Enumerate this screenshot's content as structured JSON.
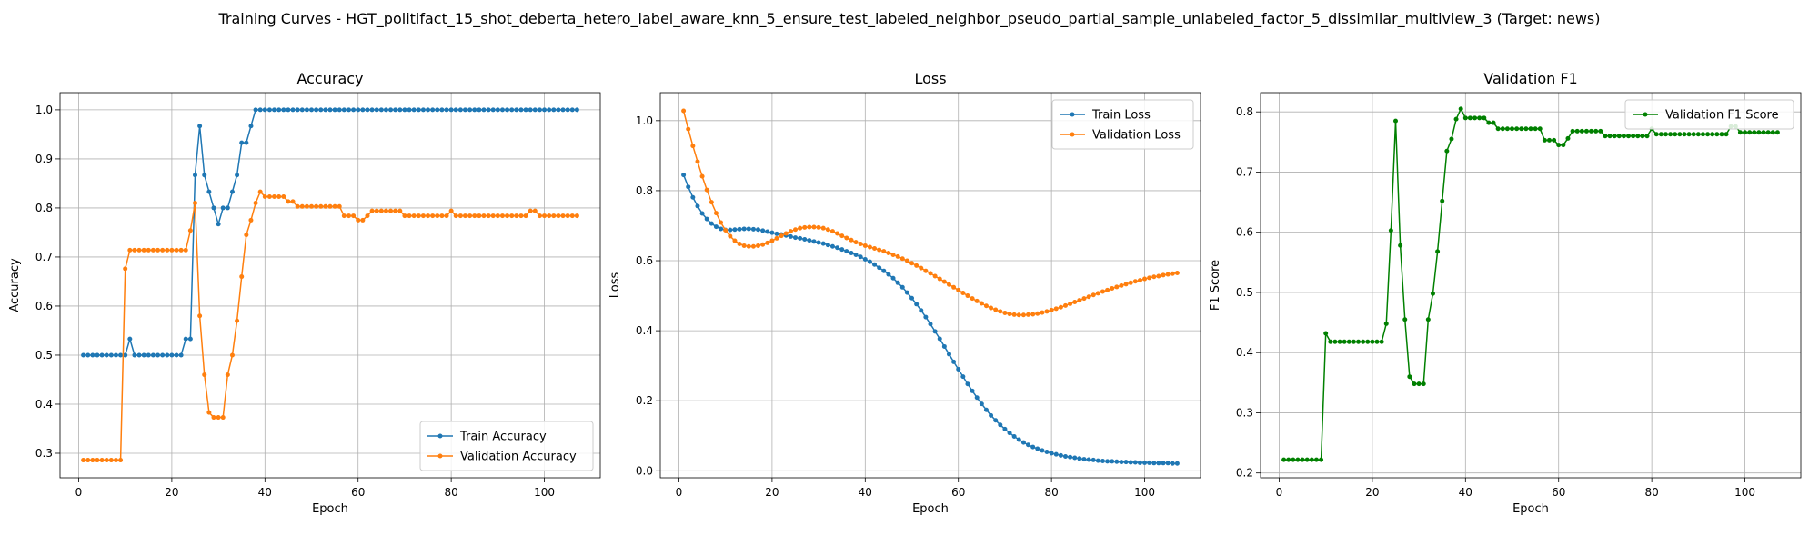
{
  "figure": {
    "suptitle": "Training Curves - HGT_politifact_15_shot_deberta_hetero_label_aware_knn_5_ensure_test_labeled_neighbor_pseudo_partial_sample_unlabeled_factor_5_dissimilar_multiview_3 (Target: news)"
  },
  "chart_data": [
    {
      "type": "line",
      "title": "Accuracy",
      "xlabel": "Epoch",
      "ylabel": "Accuracy",
      "xlim": [
        -4,
        112
      ],
      "ylim": [
        0.25,
        1.035
      ],
      "xticks": [
        0,
        20,
        40,
        60,
        80,
        100
      ],
      "yticks": [
        0.3,
        0.4,
        0.5,
        0.6,
        0.7,
        0.8,
        0.9,
        1.0
      ],
      "ytick_labels": [
        "0.3",
        "0.4",
        "0.5",
        "0.6",
        "0.7",
        "0.8",
        "0.9",
        "1.0"
      ],
      "grid": true,
      "legend_position": "lower-right",
      "series": [
        {
          "name": "Train Accuracy",
          "color": "#1f77b4",
          "values": [
            0.5,
            0.5,
            0.5,
            0.5,
            0.5,
            0.5,
            0.5,
            0.5,
            0.5,
            0.5,
            0.533,
            0.5,
            0.5,
            0.5,
            0.5,
            0.5,
            0.5,
            0.5,
            0.5,
            0.5,
            0.5,
            0.5,
            0.533,
            0.533,
            0.867,
            0.967,
            0.867,
            0.833,
            0.8,
            0.767,
            0.8,
            0.8,
            0.833,
            0.867,
            0.933,
            0.933,
            0.967,
            1.0,
            1.0,
            1.0,
            1.0,
            1.0,
            1.0,
            1.0,
            1.0,
            1.0,
            1.0,
            1.0,
            1.0,
            1.0,
            1.0,
            1.0,
            1.0,
            1.0,
            1.0,
            1.0,
            1.0,
            1.0,
            1.0,
            1.0,
            1.0,
            1.0,
            1.0,
            1.0,
            1.0,
            1.0,
            1.0,
            1.0,
            1.0,
            1.0,
            1.0,
            1.0,
            1.0,
            1.0,
            1.0,
            1.0,
            1.0,
            1.0,
            1.0,
            1.0,
            1.0,
            1.0,
            1.0,
            1.0,
            1.0,
            1.0,
            1.0,
            1.0,
            1.0,
            1.0,
            1.0,
            1.0,
            1.0,
            1.0,
            1.0,
            1.0,
            1.0,
            1.0,
            1.0,
            1.0,
            1.0,
            1.0,
            1.0,
            1.0,
            1.0,
            1.0,
            1.0
          ]
        },
        {
          "name": "Validation Accuracy",
          "color": "#ff7f0e",
          "values": [
            0.286,
            0.286,
            0.286,
            0.286,
            0.286,
            0.286,
            0.286,
            0.286,
            0.286,
            0.676,
            0.714,
            0.714,
            0.714,
            0.714,
            0.714,
            0.714,
            0.714,
            0.714,
            0.714,
            0.714,
            0.714,
            0.714,
            0.714,
            0.754,
            0.81,
            0.58,
            0.46,
            0.383,
            0.373,
            0.373,
            0.373,
            0.46,
            0.5,
            0.57,
            0.66,
            0.745,
            0.775,
            0.81,
            0.833,
            0.823,
            0.823,
            0.823,
            0.823,
            0.823,
            0.813,
            0.813,
            0.803,
            0.803,
            0.803,
            0.803,
            0.803,
            0.803,
            0.803,
            0.803,
            0.803,
            0.803,
            0.784,
            0.784,
            0.784,
            0.775,
            0.775,
            0.784,
            0.794,
            0.794,
            0.794,
            0.794,
            0.794,
            0.794,
            0.794,
            0.784,
            0.784,
            0.784,
            0.784,
            0.784,
            0.784,
            0.784,
            0.784,
            0.784,
            0.784,
            0.794,
            0.784,
            0.784,
            0.784,
            0.784,
            0.784,
            0.784,
            0.784,
            0.784,
            0.784,
            0.784,
            0.784,
            0.784,
            0.784,
            0.784,
            0.784,
            0.784,
            0.794,
            0.794,
            0.784,
            0.784,
            0.784,
            0.784,
            0.784,
            0.784,
            0.784,
            0.784,
            0.784
          ]
        }
      ]
    },
    {
      "type": "line",
      "title": "Loss",
      "xlabel": "Epoch",
      "ylabel": "Loss",
      "xlim": [
        -4,
        112
      ],
      "ylim": [
        -0.02,
        1.08
      ],
      "xticks": [
        0,
        20,
        40,
        60,
        80,
        100
      ],
      "yticks": [
        0.0,
        0.2,
        0.4,
        0.6,
        0.8,
        1.0
      ],
      "ytick_labels": [
        "0.0",
        "0.2",
        "0.4",
        "0.6",
        "0.8",
        "1.0"
      ],
      "grid": true,
      "legend_position": "upper-right",
      "series": [
        {
          "name": "Train Loss",
          "color": "#1f77b4",
          "values": [
            0.845,
            0.811,
            0.781,
            0.756,
            0.735,
            0.719,
            0.706,
            0.697,
            0.691,
            0.688,
            0.688,
            0.689,
            0.69,
            0.691,
            0.691,
            0.69,
            0.689,
            0.686,
            0.683,
            0.68,
            0.677,
            0.675,
            0.672,
            0.669,
            0.666,
            0.664,
            0.661,
            0.658,
            0.655,
            0.652,
            0.649,
            0.645,
            0.641,
            0.637,
            0.632,
            0.627,
            0.622,
            0.617,
            0.611,
            0.604,
            0.597,
            0.589,
            0.58,
            0.571,
            0.561,
            0.55,
            0.537,
            0.524,
            0.509,
            0.493,
            0.476,
            0.458,
            0.439,
            0.419,
            0.398,
            0.377,
            0.355,
            0.333,
            0.311,
            0.29,
            0.269,
            0.248,
            0.228,
            0.209,
            0.191,
            0.174,
            0.158,
            0.144,
            0.131,
            0.119,
            0.108,
            0.098,
            0.089,
            0.081,
            0.074,
            0.068,
            0.063,
            0.058,
            0.054,
            0.05,
            0.047,
            0.044,
            0.041,
            0.039,
            0.037,
            0.035,
            0.033,
            0.032,
            0.031,
            0.029,
            0.028,
            0.027,
            0.027,
            0.026,
            0.025,
            0.025,
            0.024,
            0.024,
            0.023,
            0.023,
            0.023,
            0.022,
            0.022,
            0.022,
            0.022,
            0.021,
            0.021
          ]
        },
        {
          "name": "Validation Loss",
          "color": "#ff7f0e",
          "values": [
            1.028,
            0.976,
            0.928,
            0.883,
            0.841,
            0.802,
            0.767,
            0.736,
            0.709,
            0.687,
            0.67,
            0.657,
            0.648,
            0.643,
            0.641,
            0.641,
            0.643,
            0.646,
            0.651,
            0.657,
            0.664,
            0.671,
            0.678,
            0.684,
            0.689,
            0.693,
            0.695,
            0.696,
            0.696,
            0.695,
            0.693,
            0.689,
            0.684,
            0.678,
            0.671,
            0.665,
            0.659,
            0.653,
            0.648,
            0.643,
            0.639,
            0.635,
            0.631,
            0.627,
            0.622,
            0.617,
            0.612,
            0.606,
            0.6,
            0.593,
            0.586,
            0.579,
            0.571,
            0.564,
            0.556,
            0.548,
            0.54,
            0.532,
            0.524,
            0.516,
            0.508,
            0.5,
            0.492,
            0.485,
            0.478,
            0.471,
            0.465,
            0.46,
            0.455,
            0.451,
            0.448,
            0.446,
            0.445,
            0.445,
            0.446,
            0.447,
            0.449,
            0.452,
            0.455,
            0.459,
            0.463,
            0.467,
            0.472,
            0.477,
            0.482,
            0.487,
            0.492,
            0.497,
            0.502,
            0.507,
            0.512,
            0.516,
            0.521,
            0.525,
            0.529,
            0.533,
            0.537,
            0.541,
            0.544,
            0.548,
            0.551,
            0.554,
            0.556,
            0.559,
            0.561,
            0.563,
            0.565
          ]
        }
      ]
    },
    {
      "type": "line",
      "title": "Validation F1",
      "xlabel": "Epoch",
      "ylabel": "F1 Score",
      "xlim": [
        -4,
        112
      ],
      "ylim": [
        0.192,
        0.832
      ],
      "xticks": [
        0,
        20,
        40,
        60,
        80,
        100
      ],
      "yticks": [
        0.2,
        0.3,
        0.4,
        0.5,
        0.6,
        0.7,
        0.8
      ],
      "ytick_labels": [
        "0.2",
        "0.3",
        "0.4",
        "0.5",
        "0.6",
        "0.7",
        "0.8"
      ],
      "grid": true,
      "legend_position": "upper-right",
      "series": [
        {
          "name": "Validation F1 Score",
          "color": "#008000",
          "values": [
            0.222,
            0.222,
            0.222,
            0.222,
            0.222,
            0.222,
            0.222,
            0.222,
            0.222,
            0.432,
            0.418,
            0.418,
            0.418,
            0.418,
            0.418,
            0.418,
            0.418,
            0.418,
            0.418,
            0.418,
            0.418,
            0.418,
            0.448,
            0.603,
            0.785,
            0.578,
            0.455,
            0.36,
            0.348,
            0.348,
            0.348,
            0.455,
            0.498,
            0.568,
            0.652,
            0.735,
            0.755,
            0.788,
            0.805,
            0.79,
            0.79,
            0.79,
            0.79,
            0.79,
            0.782,
            0.782,
            0.772,
            0.772,
            0.772,
            0.772,
            0.772,
            0.772,
            0.772,
            0.772,
            0.772,
            0.772,
            0.753,
            0.753,
            0.753,
            0.745,
            0.745,
            0.756,
            0.768,
            0.768,
            0.768,
            0.768,
            0.768,
            0.768,
            0.768,
            0.76,
            0.76,
            0.76,
            0.76,
            0.76,
            0.76,
            0.76,
            0.76,
            0.76,
            0.76,
            0.772,
            0.763,
            0.763,
            0.763,
            0.763,
            0.763,
            0.763,
            0.763,
            0.763,
            0.763,
            0.763,
            0.763,
            0.763,
            0.763,
            0.763,
            0.763,
            0.763,
            0.776,
            0.776,
            0.766,
            0.766,
            0.766,
            0.766,
            0.766,
            0.766,
            0.766,
            0.766,
            0.766
          ]
        }
      ]
    }
  ]
}
